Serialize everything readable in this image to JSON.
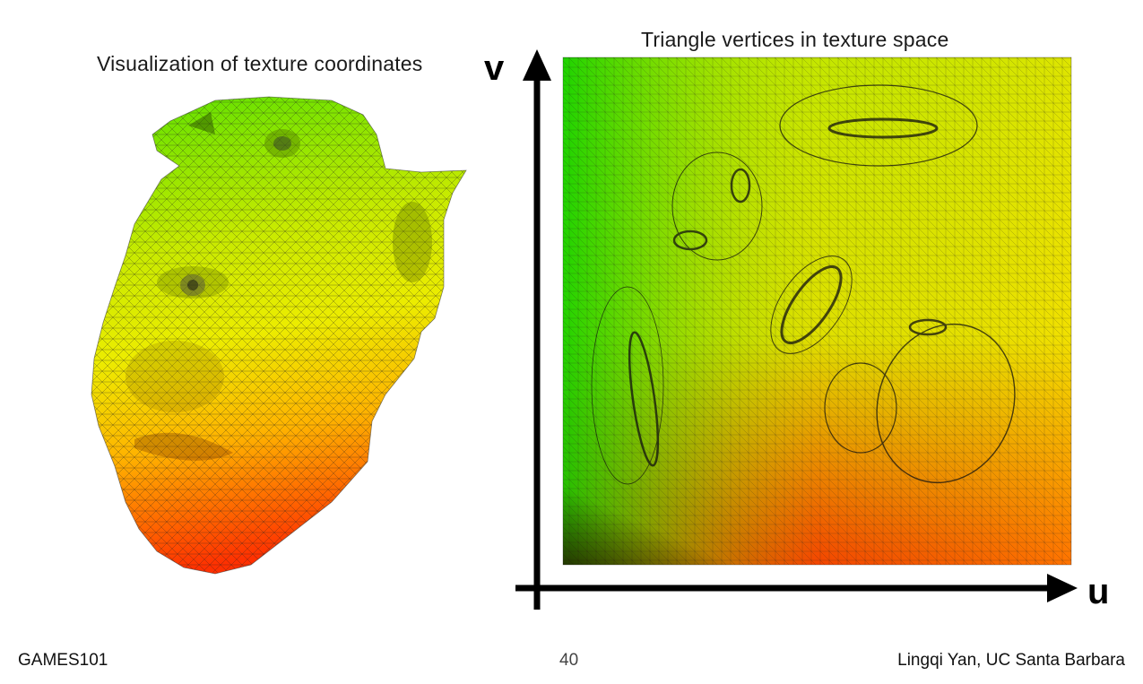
{
  "slide": {
    "left_title": "Visualization of texture coordinates",
    "right_title": "Triangle vertices in texture space",
    "axis_v_label": "v",
    "axis_u_label": "u",
    "footer_left": "GAMES101",
    "page_number": "40",
    "footer_right": "Lingqi Yan, UC Santa Barbara"
  },
  "colors": {
    "green": "#22dd00",
    "yellow": "#f2ee00",
    "orange": "#ff9900",
    "red": "#ff2200",
    "wire": "#1a1a1a",
    "axis": "#000000"
  },
  "images": {
    "face_mesh": "3D face mesh colored by texture coordinates, green at top to red at bottom, with wireframe triangles",
    "uv_map": "2D texture-space layout of the face mesh triangles, green to red gradient"
  }
}
